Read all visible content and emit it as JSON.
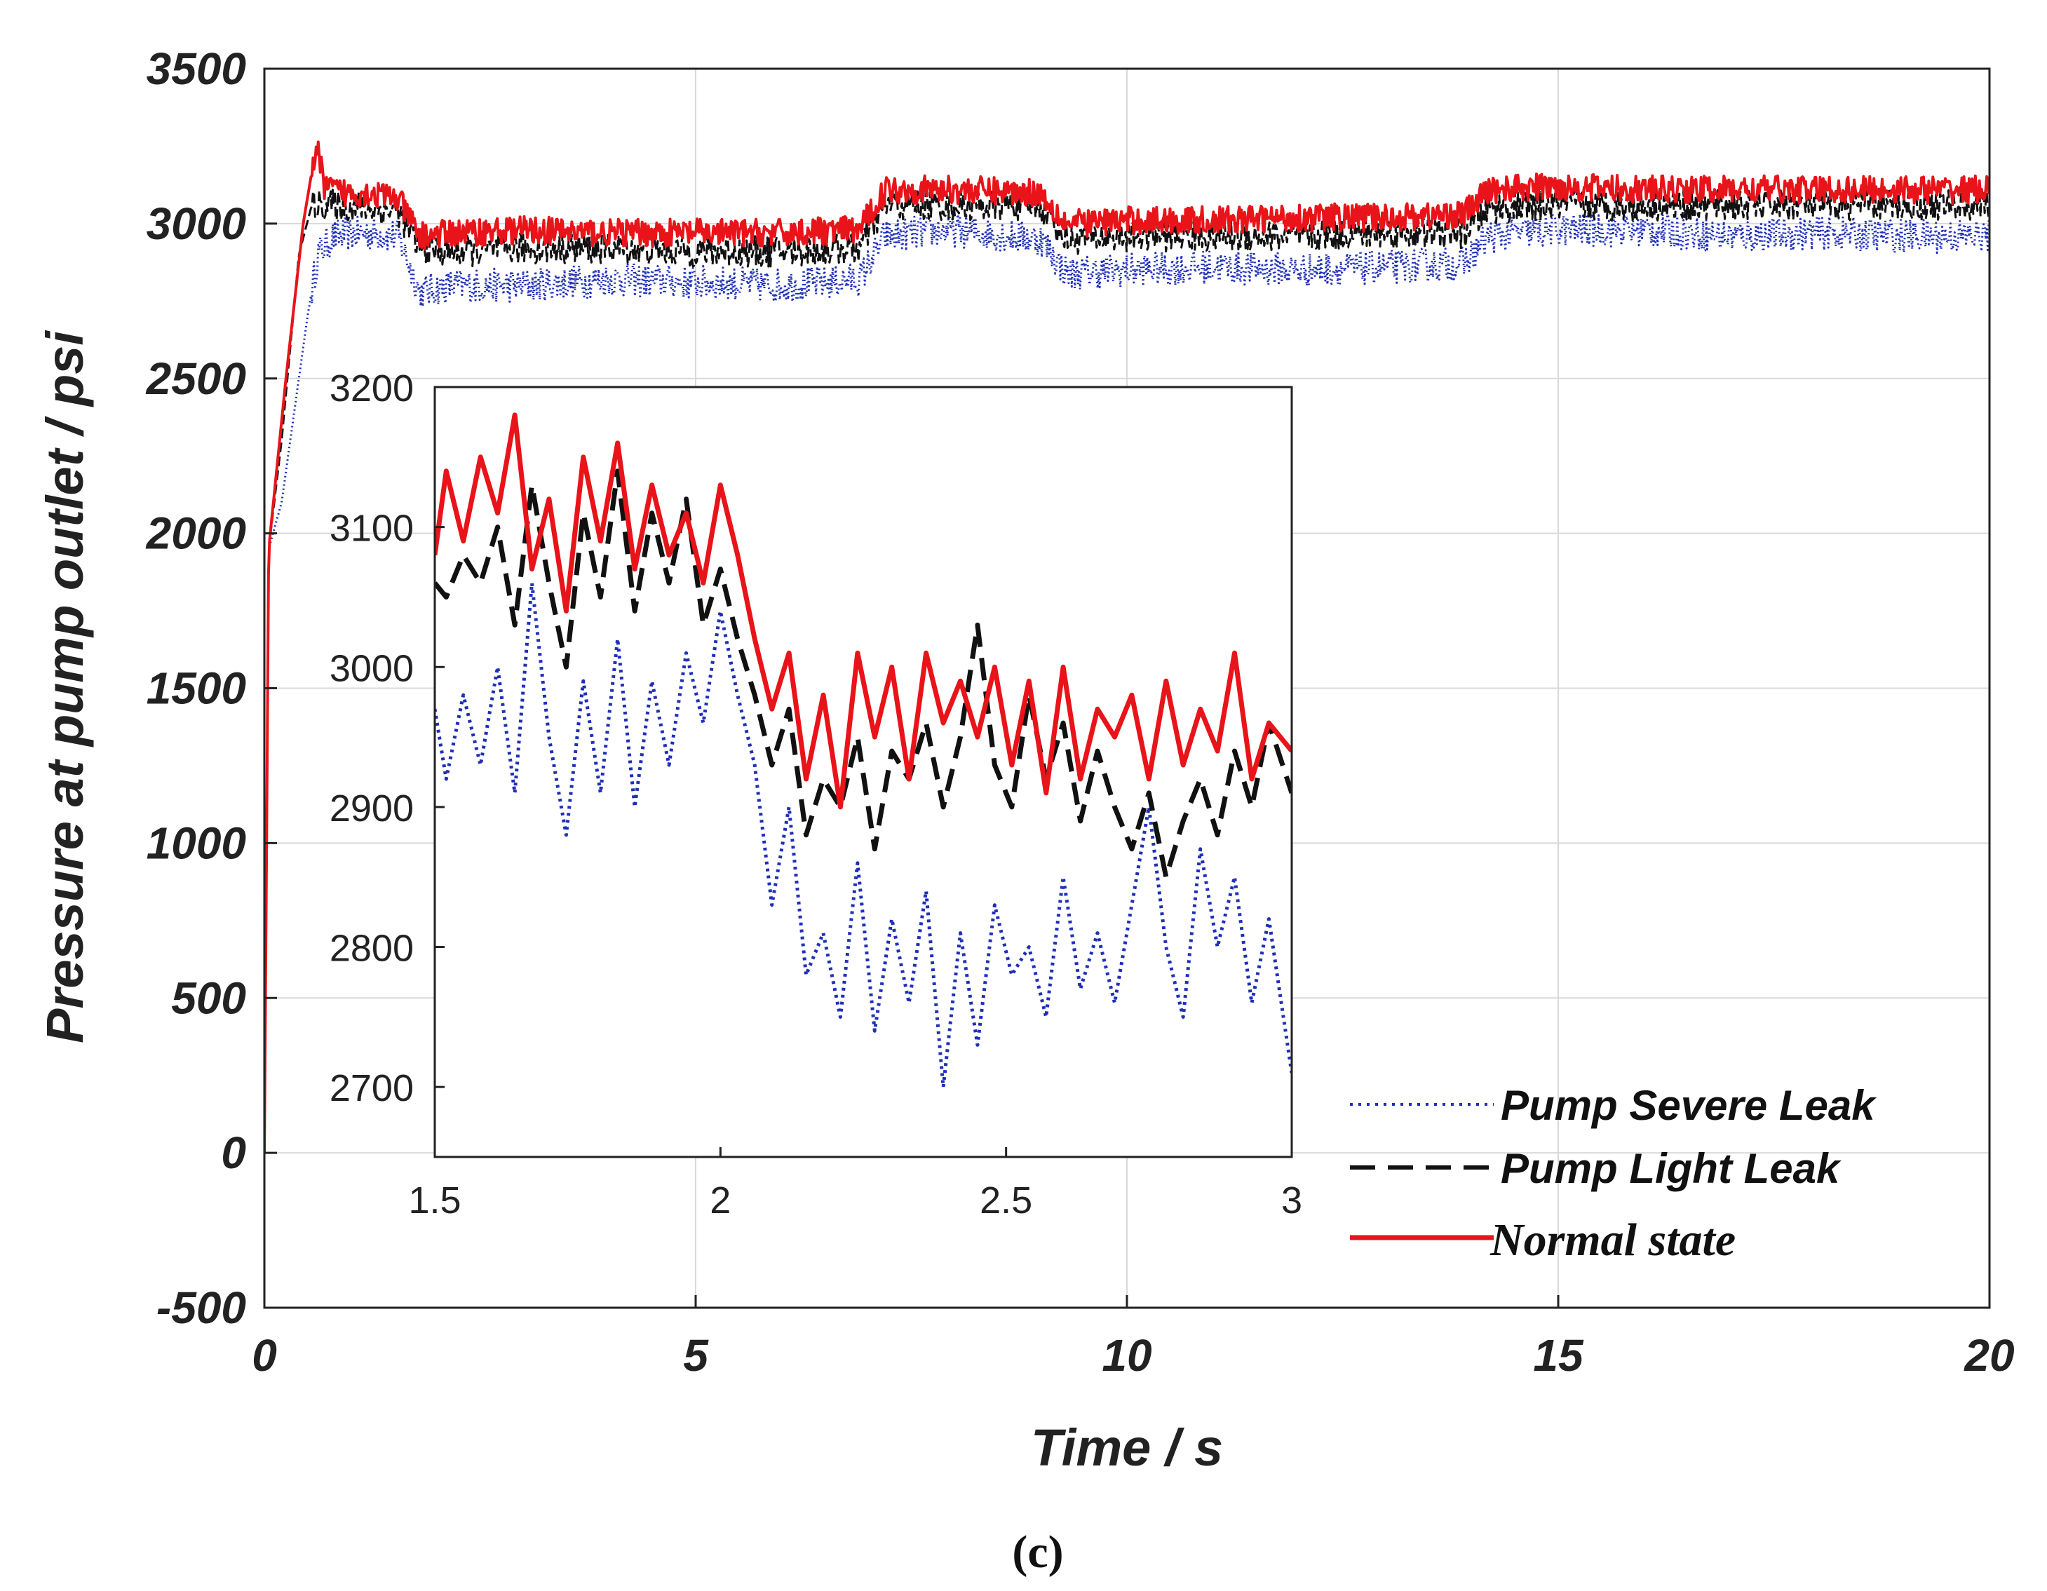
{
  "chart_data": [
    {
      "type": "line",
      "role": "main",
      "xlabel": "Time / s",
      "ylabel": "Pressure at pump outlet / psi",
      "xlim": [
        0,
        20
      ],
      "ylim": [
        -500,
        3500
      ],
      "xticks": [
        0,
        5,
        10,
        15,
        20
      ],
      "yticks": [
        -500,
        0,
        500,
        1000,
        1500,
        2000,
        2500,
        3000,
        3500
      ],
      "grid": true,
      "legend_position": "bottom-right",
      "series": [
        {
          "name": "Pump Severe Leak",
          "style": "dotted",
          "color": "#1f2fb8",
          "x": [
            0,
            0.05,
            0.2,
            0.35,
            0.5,
            0.62,
            0.8,
            1.2,
            1.55,
            1.8,
            2.2,
            3,
            4,
            5,
            6,
            6.9,
            7.2,
            8,
            9,
            9.3,
            10,
            11,
            12,
            13,
            13.9,
            14.2,
            15,
            16,
            17,
            18,
            19,
            20
          ],
          "y": [
            0,
            1950,
            2100,
            2400,
            2700,
            2900,
            2960,
            2970,
            2960,
            2780,
            2800,
            2800,
            2820,
            2810,
            2800,
            2820,
            2960,
            2980,
            2950,
            2840,
            2850,
            2860,
            2850,
            2860,
            2870,
            2960,
            2980,
            2980,
            2960,
            2970,
            2960,
            2960
          ]
        },
        {
          "name": "Pump Light Leak",
          "style": "dashed",
          "color": "#111111",
          "x": [
            0,
            0.05,
            0.2,
            0.4,
            0.55,
            0.8,
            1.2,
            1.55,
            1.8,
            2.2,
            3,
            4,
            5,
            6,
            6.9,
            7.2,
            8,
            9,
            9.3,
            10,
            11,
            12,
            13,
            13.9,
            14.2,
            15,
            16,
            17,
            18,
            19,
            20
          ],
          "y": [
            0,
            1950,
            2300,
            2900,
            3060,
            3060,
            3050,
            3040,
            2920,
            2910,
            2920,
            2920,
            2910,
            2910,
            2920,
            3060,
            3060,
            3060,
            2950,
            2960,
            2960,
            2960,
            2970,
            2970,
            3050,
            3060,
            3060,
            3060,
            3060,
            3060,
            3060
          ]
        },
        {
          "name": "Normal state",
          "style": "solid",
          "color": "#e8141a",
          "x": [
            0,
            0.05,
            0.25,
            0.45,
            0.6,
            0.7,
            0.9,
            1.2,
            1.55,
            1.8,
            2.2,
            3,
            4,
            5,
            6,
            6.9,
            7.2,
            8,
            9,
            9.3,
            10,
            11,
            12,
            13,
            13.9,
            14.2,
            15,
            16,
            17,
            18,
            19,
            20
          ],
          "y": [
            0,
            1950,
            2500,
            3000,
            3250,
            3120,
            3100,
            3100,
            3080,
            2960,
            2970,
            2980,
            2970,
            2970,
            2970,
            2980,
            3110,
            3110,
            3100,
            3000,
            3010,
            3010,
            3020,
            3020,
            3030,
            3110,
            3120,
            3110,
            3110,
            3110,
            3110,
            3110
          ]
        }
      ]
    },
    {
      "type": "line",
      "role": "inset",
      "xlim": [
        1.5,
        3
      ],
      "ylim": [
        2650,
        3200
      ],
      "xticks": [
        1.5,
        2,
        2.5,
        3
      ],
      "xtick_labels": [
        "1.5",
        "2",
        "2.5",
        "3"
      ],
      "yticks": [
        2700,
        2800,
        2900,
        3000,
        3100,
        3200
      ],
      "series": [
        {
          "name": "Pump Severe Leak",
          "style": "dotted",
          "color": "#1f2fb8",
          "x": [
            1.5,
            1.52,
            1.55,
            1.58,
            1.61,
            1.64,
            1.67,
            1.7,
            1.73,
            1.76,
            1.79,
            1.82,
            1.85,
            1.88,
            1.91,
            1.94,
            1.97,
            2.0,
            2.03,
            2.06,
            2.09,
            2.12,
            2.15,
            2.18,
            2.21,
            2.24,
            2.27,
            2.3,
            2.33,
            2.36,
            2.39,
            2.42,
            2.45,
            2.48,
            2.51,
            2.54,
            2.57,
            2.6,
            2.63,
            2.66,
            2.69,
            2.72,
            2.75,
            2.78,
            2.81,
            2.84,
            2.87,
            2.9,
            2.93,
            2.96,
            3.0
          ],
          "y": [
            2970,
            2920,
            2980,
            2930,
            3000,
            2910,
            3060,
            2950,
            2880,
            2990,
            2910,
            3020,
            2900,
            2990,
            2930,
            3010,
            2960,
            3040,
            2980,
            2930,
            2830,
            2900,
            2780,
            2810,
            2750,
            2860,
            2740,
            2820,
            2760,
            2840,
            2700,
            2810,
            2730,
            2830,
            2780,
            2800,
            2750,
            2850,
            2770,
            2810,
            2760,
            2830,
            2900,
            2800,
            2750,
            2870,
            2800,
            2850,
            2760,
            2820,
            2710
          ]
        },
        {
          "name": "Pump Light Leak",
          "style": "dashed",
          "color": "#111111",
          "x": [
            1.5,
            1.52,
            1.55,
            1.58,
            1.61,
            1.64,
            1.67,
            1.7,
            1.73,
            1.76,
            1.79,
            1.82,
            1.85,
            1.88,
            1.91,
            1.94,
            1.97,
            2.0,
            2.03,
            2.06,
            2.09,
            2.12,
            2.15,
            2.18,
            2.21,
            2.24,
            2.27,
            2.3,
            2.33,
            2.36,
            2.39,
            2.42,
            2.45,
            2.48,
            2.51,
            2.54,
            2.57,
            2.6,
            2.63,
            2.66,
            2.69,
            2.72,
            2.75,
            2.78,
            2.81,
            2.84,
            2.87,
            2.9,
            2.93,
            2.96,
            3.0
          ],
          "y": [
            3060,
            3050,
            3080,
            3060,
            3100,
            3030,
            3130,
            3060,
            3000,
            3110,
            3050,
            3140,
            3040,
            3110,
            3060,
            3120,
            3030,
            3070,
            3020,
            2980,
            2930,
            2970,
            2880,
            2920,
            2900,
            2950,
            2870,
            2940,
            2920,
            2960,
            2900,
            2950,
            3030,
            2930,
            2900,
            2980,
            2920,
            2960,
            2890,
            2940,
            2900,
            2870,
            2910,
            2850,
            2890,
            2920,
            2880,
            2940,
            2900,
            2960,
            2910
          ]
        },
        {
          "name": "Normal state",
          "style": "solid",
          "color": "#e8141a",
          "x": [
            1.5,
            1.52,
            1.55,
            1.58,
            1.61,
            1.64,
            1.67,
            1.7,
            1.73,
            1.76,
            1.79,
            1.82,
            1.85,
            1.88,
            1.91,
            1.94,
            1.97,
            2.0,
            2.03,
            2.06,
            2.09,
            2.12,
            2.15,
            2.18,
            2.21,
            2.24,
            2.27,
            2.3,
            2.33,
            2.36,
            2.39,
            2.42,
            2.45,
            2.48,
            2.51,
            2.54,
            2.57,
            2.6,
            2.63,
            2.66,
            2.69,
            2.72,
            2.75,
            2.78,
            2.81,
            2.84,
            2.87,
            2.9,
            2.93,
            2.96,
            3.0
          ],
          "y": [
            3080,
            3140,
            3090,
            3150,
            3110,
            3180,
            3070,
            3120,
            3040,
            3150,
            3090,
            3160,
            3070,
            3130,
            3080,
            3110,
            3060,
            3130,
            3080,
            3020,
            2970,
            3010,
            2920,
            2980,
            2900,
            3010,
            2950,
            3000,
            2920,
            3010,
            2960,
            2990,
            2950,
            3000,
            2930,
            2990,
            2910,
            3000,
            2920,
            2970,
            2950,
            2980,
            2920,
            2990,
            2930,
            2970,
            2940,
            3010,
            2920,
            2960,
            2940
          ]
        }
      ]
    }
  ],
  "legend": [
    {
      "label": "Pump Severe Leak",
      "style": "dotted",
      "color": "#1f2fb8"
    },
    {
      "label": "Pump Light Leak",
      "style": "dashed",
      "color": "#111111"
    },
    {
      "label": "Normal state",
      "style": "solid",
      "color": "#e8141a"
    }
  ],
  "caption": "(c)"
}
